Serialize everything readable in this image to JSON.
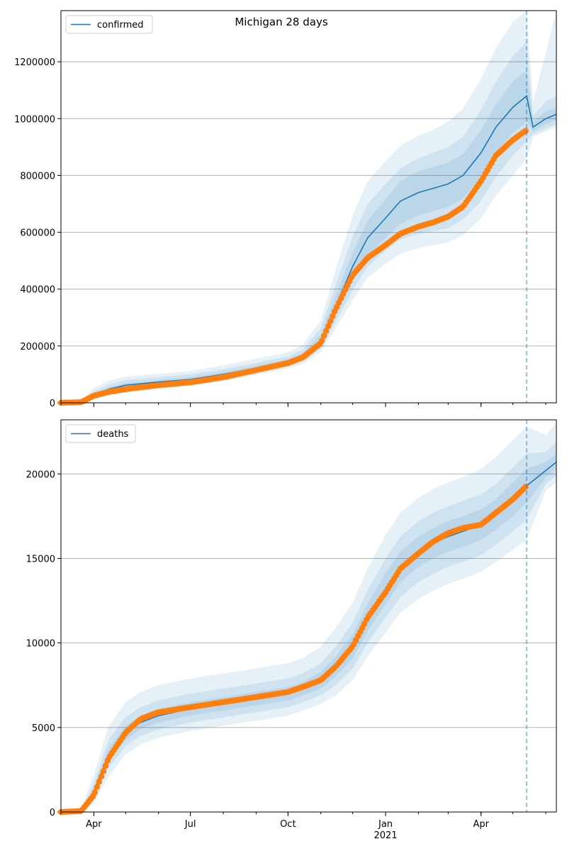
{
  "title": "Michigan 28 days",
  "x_tick_labels": [
    {
      "date": "2020-04-01",
      "label": "Apr",
      "sublabel": ""
    },
    {
      "date": "2020-07-01",
      "label": "Jul",
      "sublabel": ""
    },
    {
      "date": "2020-10-01",
      "label": "Oct",
      "sublabel": ""
    },
    {
      "date": "2021-01-01",
      "label": "Jan",
      "sublabel": "2021"
    },
    {
      "date": "2021-04-01",
      "label": "Apr",
      "sublabel": ""
    }
  ],
  "colors": {
    "model_line": "#1f77b4",
    "observed": "#ff7f0e",
    "band": "#1f77b4",
    "grid": "#b0b0b0",
    "forecast_line": "#1f77b4"
  },
  "chart_data": [
    {
      "type": "line",
      "title": "Michigan 28 days",
      "legend_position": "top-left",
      "legend": [
        "confirmed"
      ],
      "xlim": [
        "2020-03-01",
        "2021-06-11"
      ],
      "ylim": [
        0,
        1380000
      ],
      "yticks": [
        0,
        200000,
        400000,
        600000,
        800000,
        1000000,
        1200000
      ],
      "grid": "horizontal",
      "forecast_start": "2021-05-14",
      "model": {
        "name": "confirmed",
        "x": [
          "2020-03-01",
          "2020-03-20",
          "2020-04-01",
          "2020-04-15",
          "2020-05-01",
          "2020-06-01",
          "2020-07-01",
          "2020-08-01",
          "2020-09-01",
          "2020-10-01",
          "2020-10-15",
          "2020-11-01",
          "2020-11-15",
          "2020-12-01",
          "2020-12-15",
          "2021-01-01",
          "2021-01-15",
          "2021-02-01",
          "2021-02-15",
          "2021-03-01",
          "2021-03-15",
          "2021-04-01",
          "2021-04-15",
          "2021-05-01",
          "2021-05-14",
          "2021-05-20",
          "2021-06-01",
          "2021-06-11"
        ],
        "mid": [
          0,
          2000,
          28000,
          48000,
          62000,
          73000,
          82000,
          100000,
          122000,
          145000,
          165000,
          220000,
          340000,
          480000,
          580000,
          650000,
          710000,
          740000,
          755000,
          770000,
          800000,
          880000,
          970000,
          1040000,
          1080000,
          970000,
          1000000,
          1015000
        ],
        "bands": [
          {
            "lower": [
              0,
              1000,
              24000,
              42000,
              55000,
              66000,
              74000,
              92000,
              114000,
              137000,
              155000,
              205000,
              310000,
              430000,
              520000,
              580000,
              630000,
              660000,
              675000,
              690000,
              720000,
              790000,
              880000,
              950000,
              990000,
              955000,
              980000,
              995000
            ],
            "upper": [
              0,
              3000,
              32000,
              54000,
              69000,
              80000,
              90000,
              108000,
              130000,
              153000,
              175000,
              240000,
              375000,
              530000,
              640000,
              715000,
              780000,
              815000,
              830000,
              845000,
              875000,
              960000,
              1050000,
              1130000,
              1170000,
              990000,
              1025000,
              1040000
            ]
          },
          {
            "lower": [
              0,
              500,
              18000,
              36000,
              48000,
              58000,
              66000,
              83000,
              105000,
              128000,
              145000,
              190000,
              285000,
              395000,
              480000,
              535000,
              575000,
              595000,
              605000,
              615000,
              645000,
              710000,
              795000,
              870000,
              920000,
              945000,
              965000,
              980000
            ],
            "upper": [
              0,
              4000,
              40000,
              64000,
              80000,
              90000,
              100000,
              118000,
              140000,
              163000,
              188000,
              262000,
              415000,
              585000,
              700000,
              770000,
              825000,
              860000,
              880000,
              900000,
              935000,
              1030000,
              1130000,
              1220000,
              1270000,
              1010000,
              1060000,
              1080000
            ]
          },
          {
            "lower": [
              0,
              0,
              12000,
              30000,
              42000,
              52000,
              60000,
              76000,
              98000,
              121000,
              137000,
              178000,
              262000,
              360000,
              440000,
              490000,
              525000,
              545000,
              555000,
              565000,
              590000,
              650000,
              730000,
              800000,
              860000,
              935000,
              955000,
              970000
            ],
            "upper": [
              0,
              6000,
              52000,
              78000,
              92000,
              102000,
              112000,
              132000,
              155000,
              178000,
              205000,
              290000,
              470000,
              660000,
              780000,
              850000,
              905000,
              940000,
              960000,
              990000,
              1035000,
              1140000,
              1250000,
              1340000,
              1380000,
              1060000,
              1230000,
              1380000
            ]
          }
        ]
      },
      "observed": {
        "x": [
          "2020-03-01",
          "2020-03-20",
          "2020-04-01",
          "2020-04-15",
          "2020-05-01",
          "2020-06-01",
          "2020-07-01",
          "2020-08-01",
          "2020-09-01",
          "2020-10-01",
          "2020-10-15",
          "2020-11-01",
          "2020-11-15",
          "2020-12-01",
          "2020-12-15",
          "2021-01-01",
          "2021-01-15",
          "2021-02-01",
          "2021-02-15",
          "2021-03-01",
          "2021-03-15",
          "2021-04-01",
          "2021-04-15",
          "2021-05-01",
          "2021-05-14"
        ],
        "y": [
          0,
          2000,
          25000,
          38000,
          48000,
          62000,
          72000,
          90000,
          115000,
          140000,
          160000,
          210000,
          330000,
          450000,
          510000,
          555000,
          595000,
          620000,
          635000,
          655000,
          690000,
          780000,
          870000,
          925000,
          960000
        ]
      }
    },
    {
      "type": "line",
      "title": "",
      "legend_position": "top-left",
      "legend": [
        "deaths"
      ],
      "xlim": [
        "2020-03-01",
        "2021-06-11"
      ],
      "ylim": [
        0,
        23200
      ],
      "yticks": [
        0,
        5000,
        10000,
        15000,
        20000
      ],
      "grid": "horizontal",
      "forecast_start": "2021-05-14",
      "model": {
        "name": "deaths",
        "x": [
          "2020-03-01",
          "2020-03-20",
          "2020-04-01",
          "2020-04-15",
          "2020-05-01",
          "2020-05-15",
          "2020-06-01",
          "2020-07-01",
          "2020-08-01",
          "2020-09-01",
          "2020-10-01",
          "2020-10-15",
          "2020-11-01",
          "2020-11-15",
          "2020-12-01",
          "2020-12-15",
          "2021-01-01",
          "2021-01-15",
          "2021-02-01",
          "2021-02-15",
          "2021-03-01",
          "2021-03-15",
          "2021-04-01",
          "2021-04-15",
          "2021-05-01",
          "2021-05-14",
          "2021-06-01",
          "2021-06-11"
        ],
        "mid": [
          0,
          50,
          1200,
          3400,
          4700,
          5300,
          5700,
          6100,
          6400,
          6700,
          7000,
          7300,
          7800,
          8600,
          9800,
          11500,
          13200,
          14500,
          15400,
          15900,
          16300,
          16600,
          17000,
          17600,
          18500,
          19300,
          20200,
          20700
        ],
        "bands": [
          {
            "lower": [
              0,
              30,
              1000,
              3000,
              4300,
              4900,
              5300,
              5700,
              6000,
              6300,
              6600,
              6900,
              7300,
              8000,
              9100,
              10700,
              12300,
              13600,
              14500,
              15000,
              15400,
              15700,
              16100,
              16700,
              17500,
              18300,
              19800,
              20300
            ],
            "upper": [
              0,
              70,
              1400,
              3800,
              5100,
              5700,
              6100,
              6500,
              6800,
              7100,
              7400,
              7700,
              8300,
              9200,
              10500,
              12300,
              14100,
              15400,
              16300,
              16800,
              17200,
              17500,
              17900,
              18500,
              19500,
              20300,
              20700,
              21200
            ]
          },
          {
            "lower": [
              0,
              20,
              800,
              2600,
              3900,
              4500,
              4900,
              5300,
              5600,
              5900,
              6200,
              6500,
              6900,
              7500,
              8500,
              10000,
              11500,
              12700,
              13600,
              14100,
              14500,
              14800,
              15200,
              15800,
              16600,
              17300,
              19400,
              19900
            ],
            "upper": [
              0,
              100,
              1700,
              4300,
              5600,
              6200,
              6600,
              7000,
              7300,
              7600,
              7900,
              8200,
              8800,
              9800,
              11200,
              13100,
              15000,
              16300,
              17200,
              17700,
              18100,
              18400,
              18800,
              19400,
              20400,
              21200,
              21300,
              21900
            ],
            "_": ""
          },
          {
            "lower": [
              0,
              0,
              500,
              2100,
              3400,
              4000,
              4400,
              4800,
              5100,
              5400,
              5700,
              6000,
              6400,
              6900,
              7800,
              9200,
              10600,
              11800,
              12600,
              13100,
              13500,
              13800,
              14200,
              14800,
              15500,
              16100,
              19000,
              19500
            ],
            "upper": [
              0,
              200,
              2200,
              5100,
              6500,
              7100,
              7500,
              7900,
              8200,
              8500,
              8800,
              9100,
              9800,
              10900,
              12400,
              14400,
              16400,
              17700,
              18600,
              19100,
              19500,
              19800,
              20300,
              21000,
              22000,
              22800,
              22300,
              23000
            ]
          }
        ]
      },
      "observed": {
        "x": [
          "2020-03-01",
          "2020-03-20",
          "2020-04-01",
          "2020-04-15",
          "2020-05-01",
          "2020-05-15",
          "2020-06-01",
          "2020-07-01",
          "2020-08-01",
          "2020-09-01",
          "2020-10-01",
          "2020-10-15",
          "2020-11-01",
          "2020-11-15",
          "2020-12-01",
          "2020-12-15",
          "2021-01-01",
          "2021-01-15",
          "2021-02-01",
          "2021-02-15",
          "2021-03-01",
          "2021-03-15",
          "2021-04-01",
          "2021-04-15",
          "2021-05-01",
          "2021-05-14"
        ],
        "y": [
          0,
          50,
          1000,
          3200,
          4700,
          5500,
          5900,
          6200,
          6500,
          6800,
          7100,
          7400,
          7800,
          8600,
          9800,
          11500,
          13000,
          14400,
          15300,
          16000,
          16500,
          16800,
          17000,
          17700,
          18500,
          19300
        ]
      }
    }
  ]
}
